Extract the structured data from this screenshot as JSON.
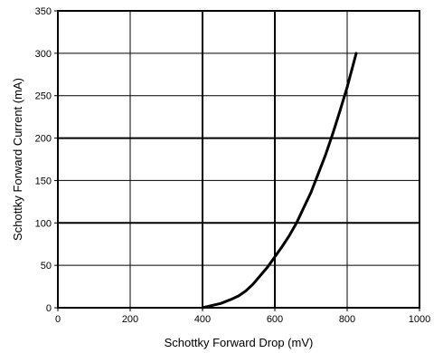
{
  "chart_data": {
    "type": "line",
    "title": "",
    "xlabel": "Schottky Forward Drop (mV)",
    "ylabel": "Schottky Forward Current (mA)",
    "xlim": [
      0,
      1000
    ],
    "ylim": [
      0,
      350
    ],
    "xticks": [
      0,
      200,
      400,
      600,
      800,
      1000
    ],
    "yticks": [
      0,
      50,
      100,
      150,
      200,
      250,
      300,
      350
    ],
    "grid": true,
    "legend": "none",
    "series_color": "#000000",
    "series": [
      {
        "x": [
          400,
          420,
          450,
          480,
          500,
          520,
          540,
          560,
          580,
          600,
          620,
          640,
          660,
          680,
          700,
          720,
          740,
          760,
          780,
          800,
          825
        ],
        "y": [
          0,
          2,
          5,
          10,
          14,
          20,
          28,
          38,
          48,
          60,
          72,
          85,
          100,
          118,
          136,
          158,
          180,
          205,
          232,
          260,
          300
        ]
      }
    ]
  }
}
